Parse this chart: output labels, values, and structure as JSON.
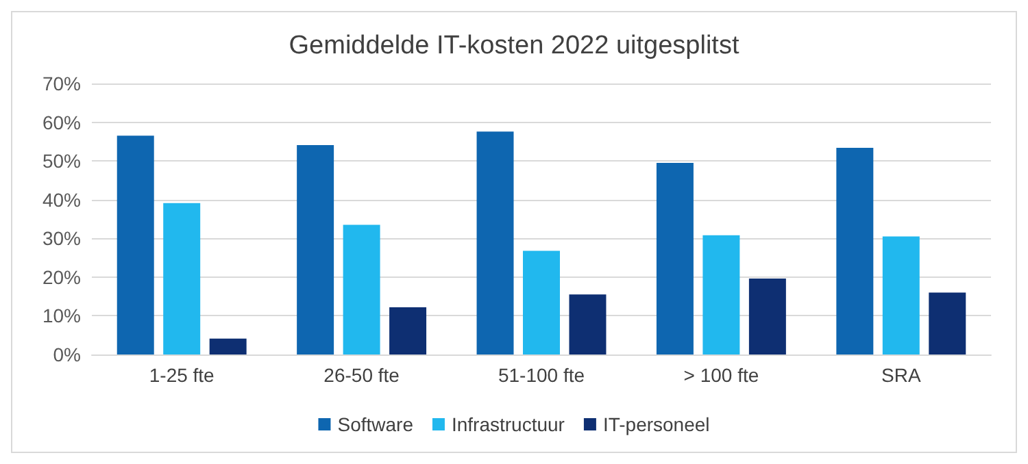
{
  "chart_data": {
    "type": "bar",
    "title": "Gemiddelde IT-kosten 2022 uitgesplitst",
    "categories": [
      "1-25 fte",
      "26-50 fte",
      "51-100 fte",
      "> 100 fte",
      "SRA"
    ],
    "series": [
      {
        "name": "Software",
        "color": "#0e66b0",
        "values": [
          56.5,
          54.1,
          57.6,
          49.5,
          53.4
        ]
      },
      {
        "name": "Infrastructuur",
        "color": "#21b8ee",
        "values": [
          39.1,
          33.5,
          26.8,
          30.8,
          30.5
        ]
      },
      {
        "name": "IT-personeel",
        "color": "#0e2f72",
        "values": [
          4.1,
          12.2,
          15.5,
          19.6,
          16.0
        ]
      }
    ],
    "ylim": [
      0,
      70
    ],
    "yticks": [
      {
        "value": 0,
        "label": "0%"
      },
      {
        "value": 10,
        "label": "10%"
      },
      {
        "value": 20,
        "label": "20%"
      },
      {
        "value": 30,
        "label": "30%"
      },
      {
        "value": 40,
        "label": "40%"
      },
      {
        "value": 50,
        "label": "50%"
      },
      {
        "value": 60,
        "label": "60%"
      },
      {
        "value": 70,
        "label": "70%"
      }
    ],
    "grid": "y",
    "legend": "bottom"
  }
}
